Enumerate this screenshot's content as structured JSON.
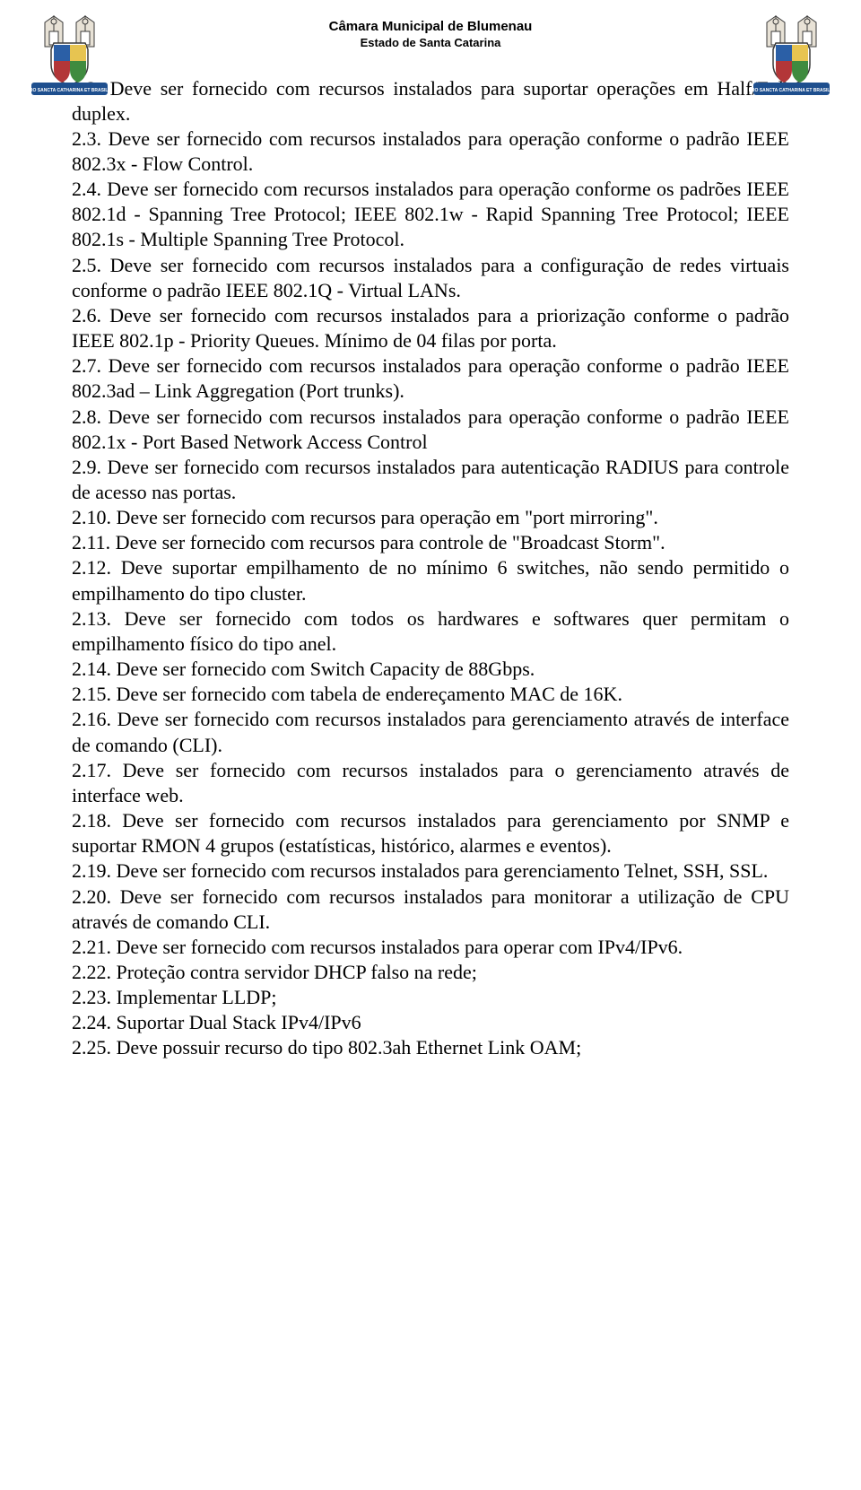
{
  "header": {
    "title": "Câmara Municipal de Blumenau",
    "subtitle": "Estado de Santa Catarina"
  },
  "paragraphs": [
    {
      "text": "2.2. Deve ser fornecido com recursos instalados para suportar operações em Half/Full duplex.",
      "align": "justify"
    },
    {
      "text": "2.3. Deve ser fornecido com recursos instalados para operação conforme o padrão IEEE 802.3x - Flow Control.",
      "align": "justify"
    },
    {
      "text": "2.4. Deve ser fornecido com recursos instalados para operação conforme os padrões IEEE 802.1d - Spanning Tree Protocol; IEEE 802.1w - Rapid Spanning Tree Protocol; IEEE 802.1s - Multiple Spanning Tree Protocol.",
      "align": "justify"
    },
    {
      "text": "2.5. Deve ser fornecido com recursos instalados para a configuração de redes virtuais conforme o padrão IEEE 802.1Q - Virtual LANs.",
      "align": "justify"
    },
    {
      "text": "2.6. Deve ser fornecido com recursos instalados para a priorização conforme o padrão IEEE 802.1p - Priority Queues. Mínimo de 04 filas por porta.",
      "align": "justify"
    },
    {
      "text": "2.7. Deve ser fornecido com recursos instalados para operação conforme o padrão IEEE 802.3ad – Link Aggregation (Port trunks).",
      "align": "justify"
    },
    {
      "text": "2.8. Deve ser fornecido com recursos instalados para operação conforme o padrão IEEE 802.1x - Port Based Network Access Control",
      "align": "justify"
    },
    {
      "text": "2.9. Deve ser fornecido com recursos instalados para autenticação RADIUS para controle de acesso nas portas.",
      "align": "justify"
    },
    {
      "text": "2.10. Deve ser fornecido com recursos para operação em \"port mirroring\".",
      "align": "justify"
    },
    {
      "text": "2.11. Deve ser fornecido com recursos para controle de \"Broadcast Storm\".",
      "align": "justify"
    },
    {
      "text": "2.12. Deve suportar empilhamento de no mínimo 6 switches, não sendo permitido o empilhamento do tipo cluster.",
      "align": "justify"
    },
    {
      "text": "2.13. Deve ser fornecido com todos os hardwares e softwares quer permitam o empilhamento físico do tipo anel.",
      "align": "justify"
    },
    {
      "text": "2.14. Deve ser fornecido com Switch Capacity de 88Gbps.",
      "align": "left"
    },
    {
      "text": "2.15. Deve ser fornecido com tabela de endereçamento MAC de 16K.",
      "align": "left"
    },
    {
      "text": "2.16. Deve ser fornecido com recursos instalados para gerenciamento através de interface de comando (CLI).",
      "align": "justify"
    },
    {
      "text": "2.17. Deve ser fornecido com recursos instalados para o gerenciamento através de interface web.",
      "align": "justify"
    },
    {
      "text": "2.18. Deve ser fornecido com recursos instalados para gerenciamento por SNMP e suportar RMON 4 grupos (estatísticas, histórico, alarmes e eventos).",
      "align": "justify"
    },
    {
      "text": "2.19. Deve ser fornecido com recursos instalados para gerenciamento Telnet, SSH, SSL.",
      "align": "justify"
    },
    {
      "text": "2.20. Deve ser fornecido com recursos instalados para monitorar a utilização de CPU através de comando CLI.",
      "align": "justify"
    },
    {
      "text": "2.21. Deve ser fornecido com recursos instalados para operar com IPv4/IPv6.",
      "align": "justify"
    },
    {
      "text": "2.22. Proteção contra servidor DHCP falso na rede;",
      "align": "left"
    },
    {
      "text": "2.23. Implementar LLDP;",
      "align": "left"
    },
    {
      "text": "2.24. Suportar Dual Stack IPv4/IPv6",
      "align": "left"
    },
    {
      "text": "2.25. Deve possuir recurso do tipo 802.3ah Ethernet Link OAM;",
      "align": "left"
    }
  ],
  "crest": {
    "banner_text": "PRO SANCTA CATHARINA ET BRASILIA",
    "colors": {
      "shield_blue": "#2b5fa6",
      "shield_red": "#b33638",
      "shield_yellow": "#e7c451",
      "shield_green": "#3f8b3f",
      "banner_blue": "#1e4f8e",
      "figure": "#e8e2d6",
      "outline": "#3a3a3a"
    }
  }
}
